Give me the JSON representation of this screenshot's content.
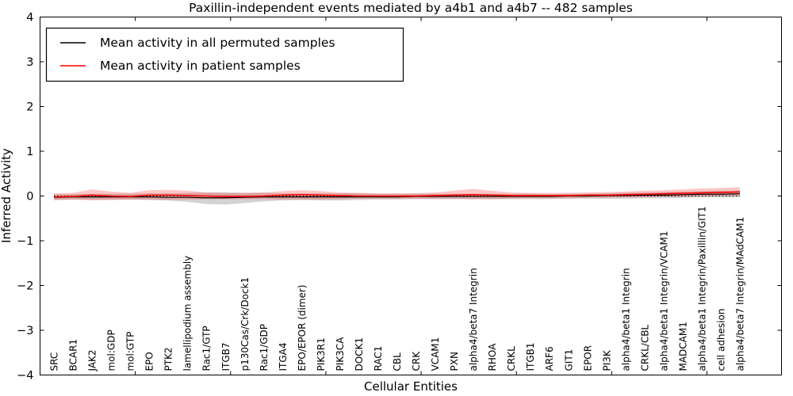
{
  "figure": {
    "background": "#ffffff",
    "axes_border_color": "#000000"
  },
  "chart_data": {
    "type": "line",
    "title": "Paxillin-independent events mediated by a4b1 and a4b7 -- 482 samples",
    "xlabel": "Cellular Entities",
    "ylabel": "Inferred Activity",
    "ylim": [
      -4,
      4
    ],
    "yticks": [
      -4,
      -3,
      -2,
      -1,
      0,
      1,
      2,
      3,
      4
    ],
    "xtick_interval": 5,
    "grid": false,
    "legend_position": "upper left",
    "zero_line": {
      "y": 0,
      "color": "#000000",
      "style": "dotted"
    },
    "categories": [
      "SRC",
      "BCAR1",
      "JAK2",
      "mol:GDP",
      "mol:GTP",
      "EPO",
      "PTK2",
      "lamellipodium assembly",
      "Rac1/GTP",
      "ITGB7",
      "p130Cas/Crk/Dock1",
      "Rac1/GDP",
      "ITGA4",
      "EPO/EPOR (dimer)",
      "PIK3R1",
      "PIK3CA",
      "DOCK1",
      "RAC1",
      "CBL",
      "CRK",
      "VCAM1",
      "PXN",
      "alpha4/beta7 Integrin",
      "RHOA",
      "CRKL",
      "ITGB1",
      "ARF6",
      "GIT1",
      "EPOR",
      "PI3K",
      "alpha4/beta1 Integrin",
      "CRKL/CBL",
      "alpha4/beta1 Integrin/VCAM1",
      "MADCAM1",
      "alpha4/beta1 Integrin/Paxillin/GIT1",
      "cell adhesion",
      "alpha4/beta7 Integrin/MAdCAM1"
    ],
    "series": [
      {
        "name": "Mean activity in all permuted samples",
        "color": "#000000",
        "line_width": 1.2,
        "band_color": "#808080",
        "band_opacity": 0.35,
        "values": [
          -0.03,
          -0.02,
          -0.02,
          -0.02,
          -0.02,
          -0.02,
          -0.03,
          -0.03,
          -0.04,
          -0.04,
          -0.03,
          -0.02,
          -0.02,
          -0.02,
          -0.02,
          -0.02,
          -0.02,
          -0.02,
          -0.02,
          -0.01,
          -0.01,
          -0.01,
          -0.01,
          -0.01,
          -0.01,
          -0.01,
          -0.01,
          0.0,
          0.0,
          0.01,
          0.01,
          0.02,
          0.02,
          0.03,
          0.04,
          0.04,
          0.05
        ],
        "band_upper": [
          0.04,
          0.04,
          0.05,
          0.05,
          0.05,
          0.06,
          0.06,
          0.07,
          0.08,
          0.08,
          0.07,
          0.07,
          0.06,
          0.06,
          0.06,
          0.06,
          0.06,
          0.05,
          0.05,
          0.05,
          0.05,
          0.05,
          0.05,
          0.05,
          0.05,
          0.05,
          0.04,
          0.05,
          0.05,
          0.06,
          0.07,
          0.08,
          0.09,
          0.1,
          0.11,
          0.12,
          0.12
        ],
        "band_lower": [
          -0.09,
          -0.08,
          -0.08,
          -0.08,
          -0.08,
          -0.09,
          -0.1,
          -0.13,
          -0.18,
          -0.19,
          -0.16,
          -0.12,
          -0.1,
          -0.09,
          -0.1,
          -0.1,
          -0.09,
          -0.08,
          -0.08,
          -0.07,
          -0.07,
          -0.07,
          -0.07,
          -0.07,
          -0.07,
          -0.07,
          -0.07,
          -0.06,
          -0.06,
          -0.06,
          -0.06,
          -0.05,
          -0.05,
          -0.04,
          -0.03,
          -0.03,
          -0.03
        ]
      },
      {
        "name": "Mean activity in patient samples",
        "color": "#ff0000",
        "line_width": 1.6,
        "band_color": "#ff0000",
        "band_opacity": 0.22,
        "values": [
          -0.02,
          -0.01,
          0.02,
          0.0,
          -0.01,
          0.02,
          0.02,
          0.01,
          0.0,
          -0.01,
          -0.01,
          0.0,
          0.02,
          0.03,
          0.02,
          0.01,
          0.0,
          0.0,
          0.0,
          0.0,
          0.01,
          0.02,
          0.03,
          0.02,
          0.01,
          0.01,
          0.01,
          0.01,
          0.02,
          0.02,
          0.03,
          0.04,
          0.05,
          0.06,
          0.07,
          0.08,
          0.09
        ],
        "band_upper": [
          0.06,
          0.07,
          0.15,
          0.1,
          0.07,
          0.13,
          0.14,
          0.12,
          0.08,
          0.07,
          0.07,
          0.08,
          0.11,
          0.13,
          0.11,
          0.08,
          0.07,
          0.06,
          0.06,
          0.06,
          0.08,
          0.12,
          0.16,
          0.12,
          0.08,
          0.07,
          0.07,
          0.07,
          0.08,
          0.09,
          0.1,
          0.12,
          0.13,
          0.15,
          0.17,
          0.18,
          0.2
        ],
        "band_lower": [
          -0.09,
          -0.08,
          -0.1,
          -0.09,
          -0.08,
          -0.08,
          -0.09,
          -0.08,
          -0.07,
          -0.07,
          -0.07,
          -0.07,
          -0.08,
          -0.08,
          -0.08,
          -0.07,
          -0.06,
          -0.06,
          -0.06,
          -0.06,
          -0.06,
          -0.06,
          -0.07,
          -0.07,
          -0.06,
          -0.05,
          -0.05,
          -0.05,
          -0.04,
          -0.04,
          -0.03,
          -0.03,
          -0.02,
          -0.02,
          -0.01,
          0.0,
          0.0
        ]
      }
    ]
  }
}
